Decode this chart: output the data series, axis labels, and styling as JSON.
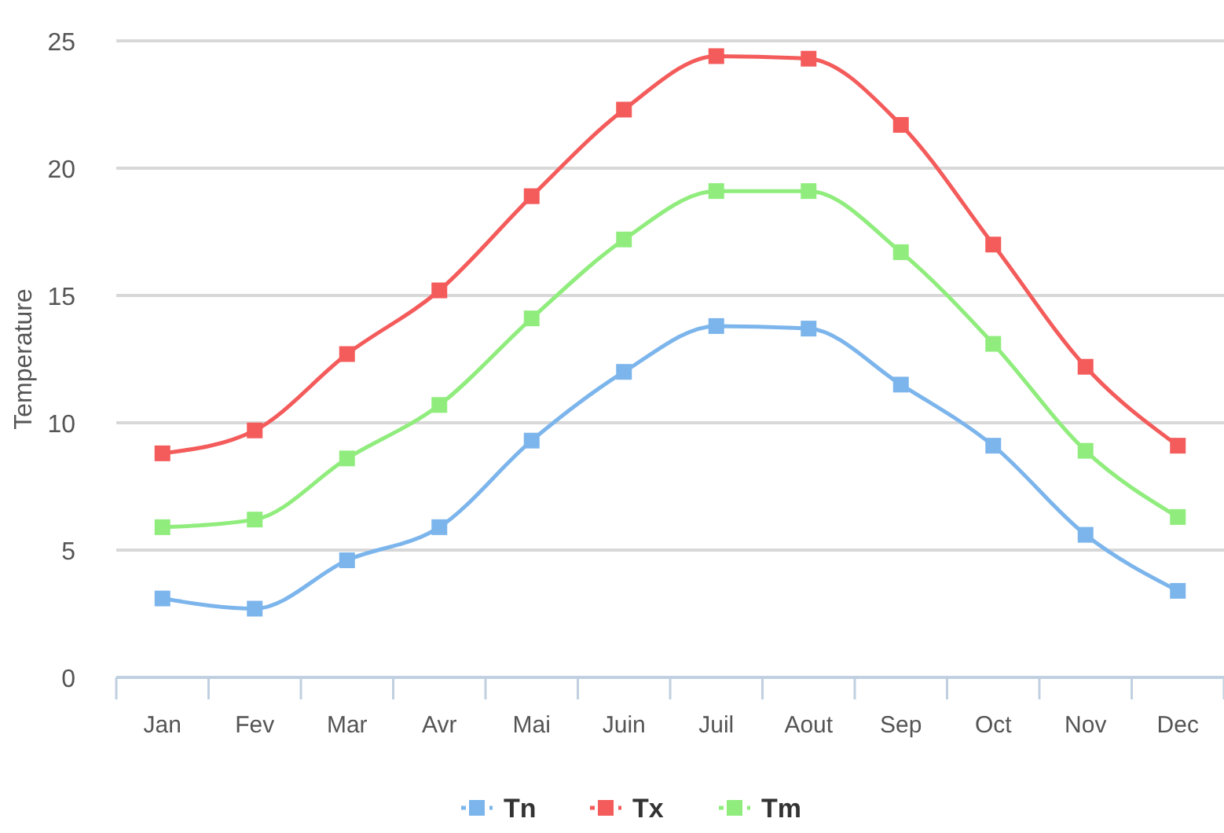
{
  "chart_data": {
    "type": "line",
    "ylabel": "Temperature",
    "categories": [
      "Jan",
      "Fev",
      "Mar",
      "Avr",
      "Mai",
      "Juin",
      "Juil",
      "Aout",
      "Sep",
      "Oct",
      "Nov",
      "Dec"
    ],
    "series": [
      {
        "name": "Tn",
        "color": "#7cb5ec",
        "values": [
          3.1,
          2.7,
          4.6,
          5.9,
          9.3,
          12.0,
          13.8,
          13.7,
          11.5,
          9.1,
          5.6,
          3.4
        ]
      },
      {
        "name": "Tx",
        "color": "#f45b5b",
        "values": [
          8.8,
          9.7,
          12.7,
          15.2,
          18.9,
          22.3,
          24.4,
          24.3,
          21.7,
          17.0,
          12.2,
          9.1
        ]
      },
      {
        "name": "Tm",
        "color": "#90ed7d",
        "values": [
          5.9,
          6.2,
          8.6,
          10.7,
          14.1,
          17.2,
          19.1,
          19.1,
          16.7,
          13.1,
          8.9,
          6.3
        ]
      }
    ],
    "ylim": [
      0,
      25
    ],
    "yticks": [
      0,
      5,
      10,
      15,
      20,
      25
    ],
    "grid": "y",
    "legend": "bottom",
    "marker": "square",
    "line_style": "solid"
  }
}
